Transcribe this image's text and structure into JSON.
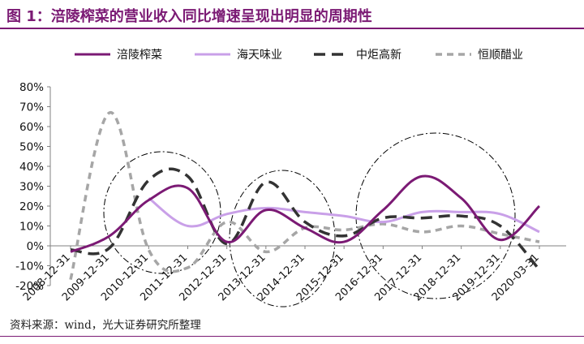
{
  "header": {
    "title": "图 1：涪陵榨菜的营业收入同比增速呈现出明显的周期性"
  },
  "footer": {
    "source": "资料来源：wind，光大证券研究所整理"
  },
  "colors": {
    "brand": "#7b1a74",
    "fuling": "#7b1a74",
    "haitian": "#c9a0e8",
    "zhongju": "#333333",
    "hengshun": "#a6a6a6"
  },
  "chart_data": {
    "type": "line",
    "title": "",
    "xlabel": "",
    "ylabel": "",
    "categories": [
      "2008-12-31",
      "2009-12-31",
      "2010-12-31",
      "2011-12-31",
      "2012-12-31",
      "2013-12-31",
      "2014-12-31",
      "2015-12-31",
      "2016-12-31",
      "2017-12-31",
      "2018-12-31",
      "2019-12-31",
      "2020-03-31"
    ],
    "ylim": [
      -0.2,
      0.8
    ],
    "yticks": [
      "80%",
      "70%",
      "60%",
      "50%",
      "40%",
      "30%",
      "20%",
      "10%",
      "0%",
      "-10%",
      "-20%"
    ],
    "ytick_values": [
      0.8,
      0.7,
      0.6,
      0.5,
      0.4,
      0.3,
      0.2,
      0.1,
      0.0,
      -0.1,
      -0.2
    ],
    "legend_position": "top",
    "grid": false,
    "series": [
      {
        "name": "涪陵榨菜",
        "style": "solid",
        "values": [
          -0.03,
          0.05,
          0.23,
          0.29,
          0.02,
          0.18,
          0.09,
          0.02,
          0.18,
          0.35,
          0.24,
          0.03,
          0.2
        ]
      },
      {
        "name": "海天味业",
        "style": "solid",
        "values": [
          null,
          null,
          0.24,
          0.1,
          0.16,
          0.19,
          0.17,
          0.15,
          0.12,
          0.17,
          0.17,
          0.16,
          0.07
        ]
      },
      {
        "name": "中炬高新",
        "style": "long-dash",
        "values": [
          -0.02,
          -0.01,
          0.33,
          0.35,
          0.01,
          0.32,
          0.12,
          0.05,
          0.14,
          0.14,
          0.15,
          0.1,
          -0.12
        ]
      },
      {
        "name": "恒顺醋业",
        "style": "short-dash",
        "values": [
          -0.17,
          0.67,
          -0.02,
          -0.11,
          0.12,
          -0.03,
          0.09,
          0.08,
          0.11,
          0.07,
          0.1,
          0.06,
          0.02
        ]
      }
    ]
  }
}
